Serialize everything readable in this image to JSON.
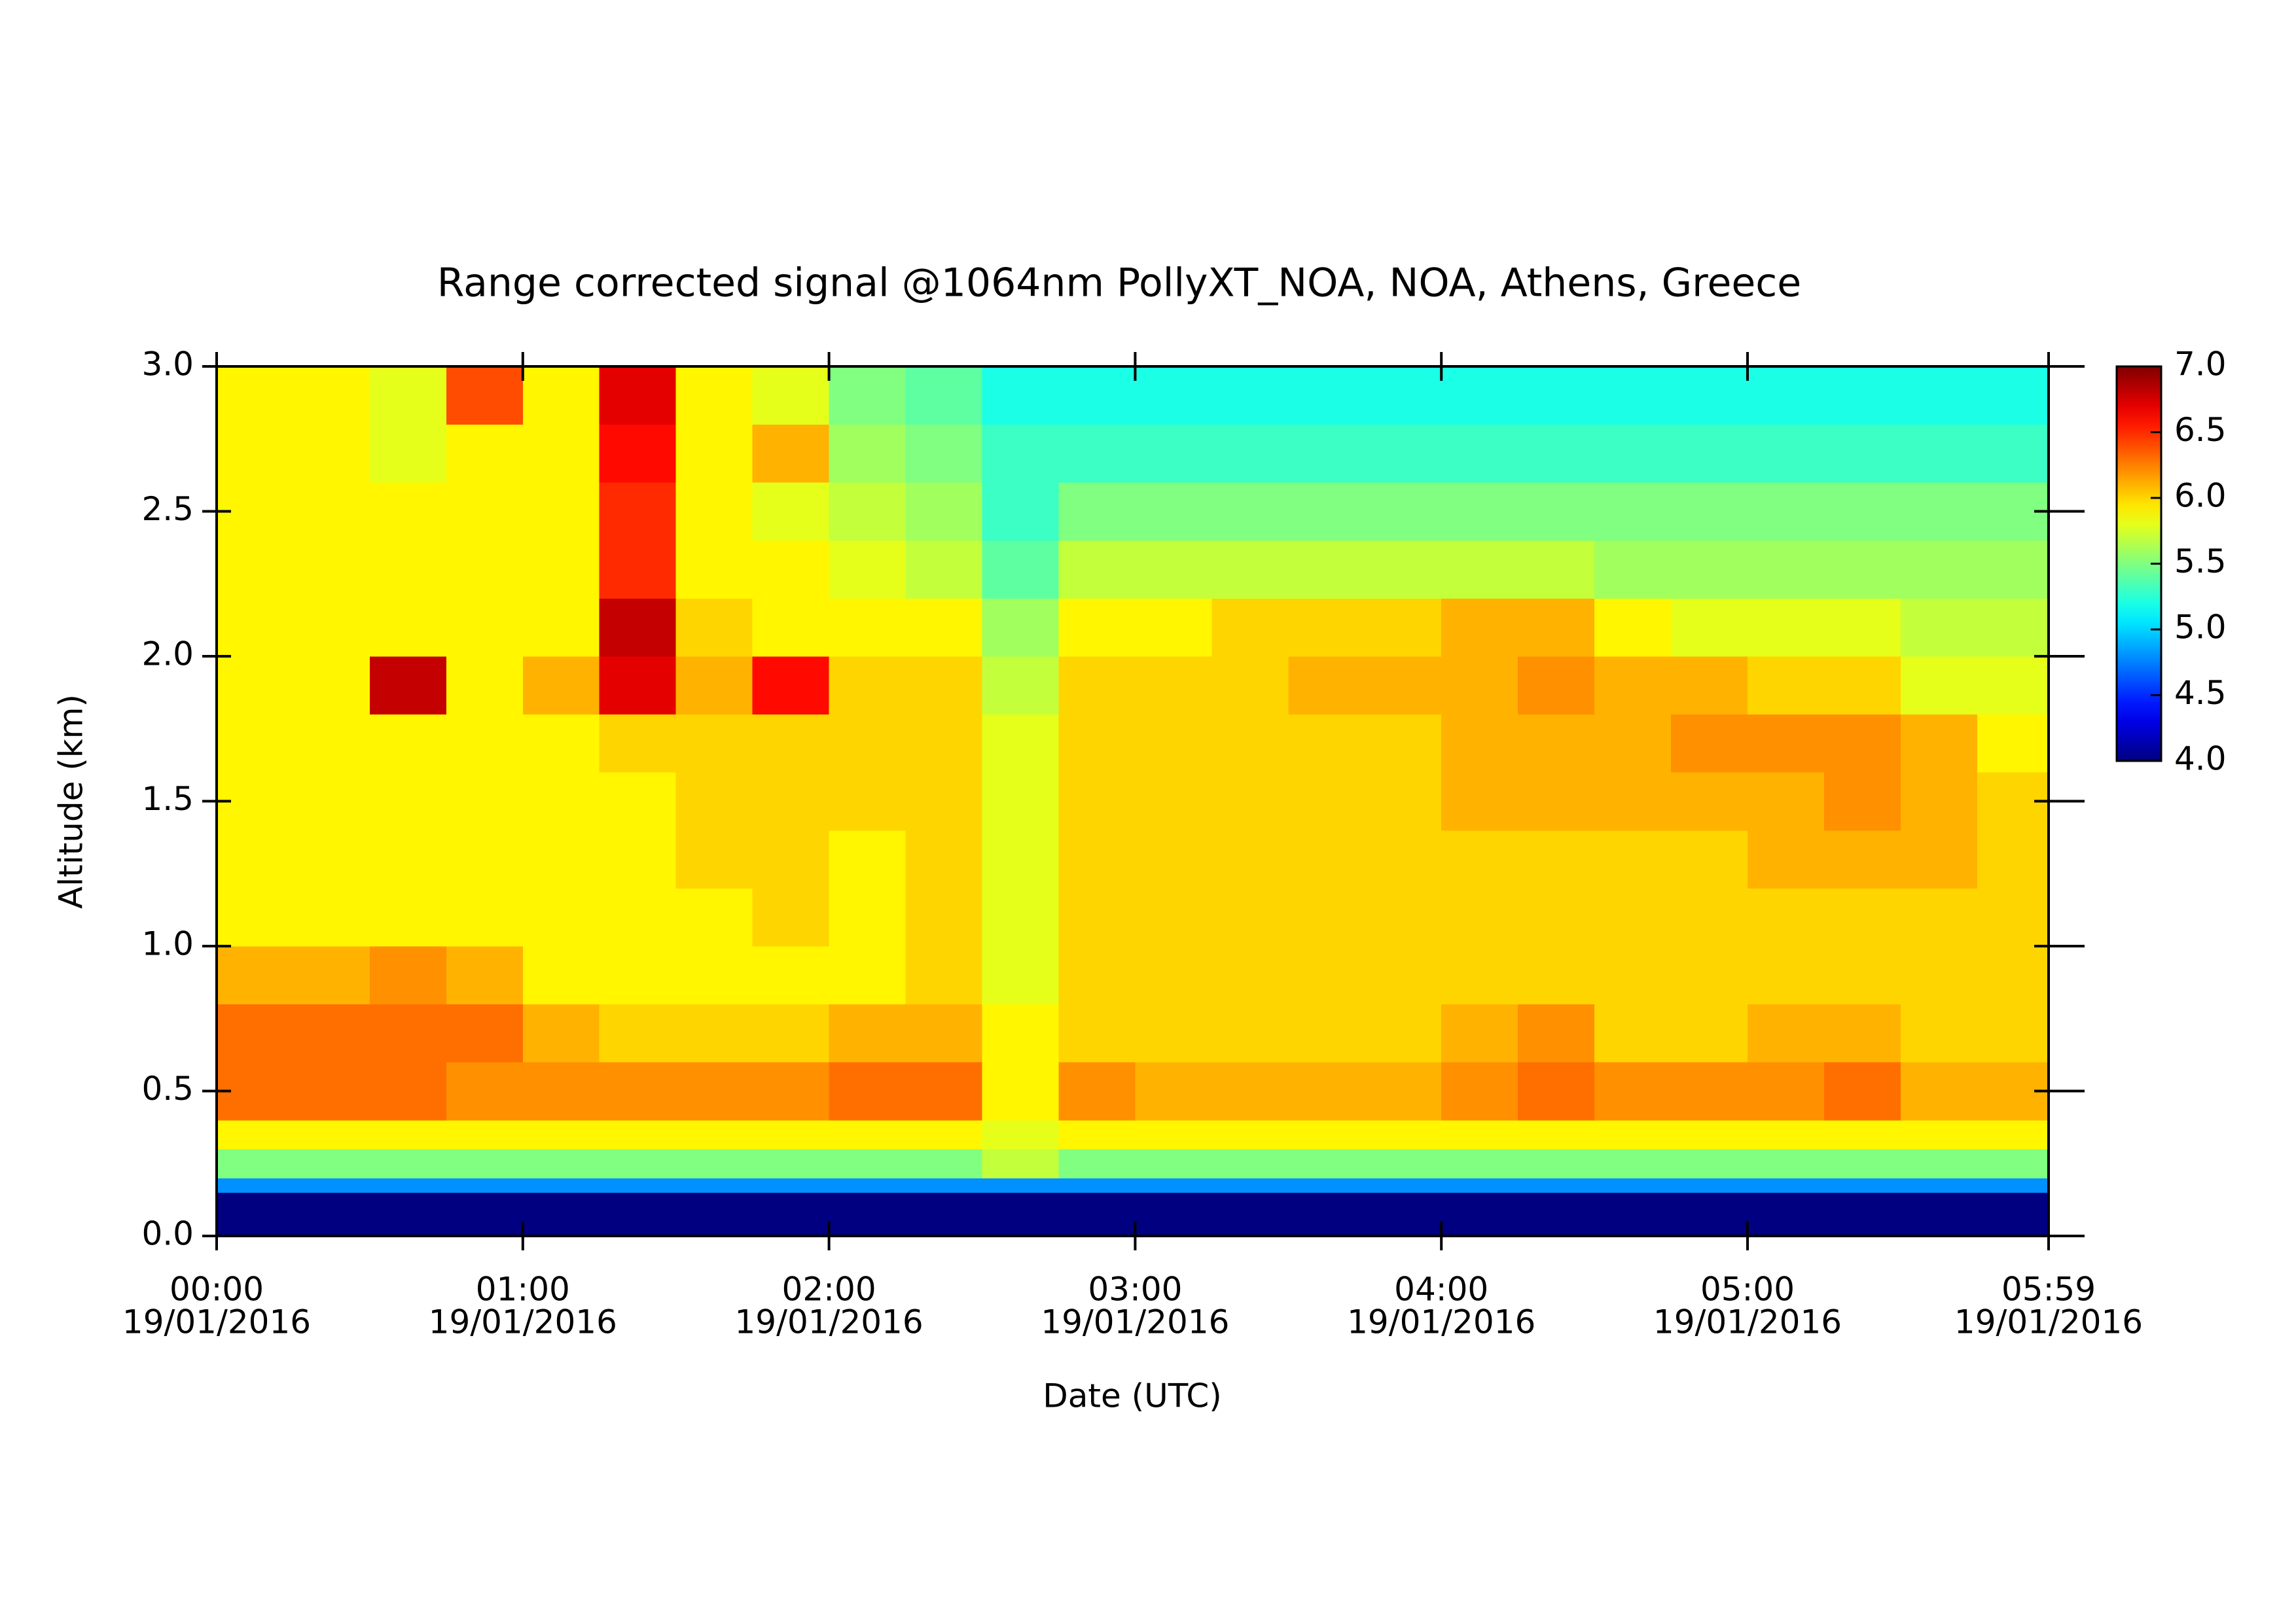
{
  "chart_data": {
    "type": "heatmap",
    "title": "Range corrected signal @1064nm  PollyXT_NOA, NOA, Athens, Greece",
    "xlabel": "Date (UTC)",
    "ylabel": "Altitude (km)",
    "colormap": "jet",
    "xlim": [
      0,
      359
    ],
    "ylim": [
      0,
      3
    ],
    "zlim": [
      4,
      7
    ],
    "xticks": [
      {
        "value": 0,
        "label": "00:00",
        "date": "19/01/2016"
      },
      {
        "value": 60,
        "label": "01:00",
        "date": "19/01/2016"
      },
      {
        "value": 120,
        "label": "02:00",
        "date": "19/01/2016"
      },
      {
        "value": 180,
        "label": "03:00",
        "date": "19/01/2016"
      },
      {
        "value": 240,
        "label": "04:00",
        "date": "19/01/2016"
      },
      {
        "value": 300,
        "label": "05:00",
        "date": "19/01/2016"
      },
      {
        "value": 359,
        "label": "05:59",
        "date": "19/01/2016"
      }
    ],
    "yticks": [
      {
        "value": 0,
        "label": "0.0"
      },
      0.5,
      {
        "value": 1,
        "label": "1.0"
      },
      1.5,
      {
        "value": 2,
        "label": "2.0"
      },
      2.5,
      {
        "value": 3,
        "label": "3.0"
      }
    ],
    "zticks": [
      {
        "value": 4,
        "label": "4.0"
      },
      4.5,
      {
        "value": 5,
        "label": "5.0"
      },
      5.5,
      {
        "value": 6,
        "label": "6.0"
      },
      6.5,
      {
        "value": 7,
        "label": "7.0"
      }
    ],
    "xbins": [
      0,
      15,
      30,
      45,
      60,
      75,
      90,
      105,
      120,
      135,
      150,
      165,
      180,
      195,
      210,
      225,
      240,
      255,
      270,
      285,
      300,
      315,
      330,
      345,
      359
    ],
    "ybins": [
      0,
      0.15,
      0.2,
      0.3,
      0.4,
      0.6,
      0.8,
      1.0,
      1.2,
      1.4,
      1.6,
      1.8,
      2.0,
      2.2,
      2.4,
      2.6,
      2.8,
      3.0
    ],
    "z": [
      [
        4.0,
        4.0,
        4.0,
        4.0,
        4.0,
        4.0,
        4.0,
        4.0,
        4.0,
        4.0,
        4.0,
        4.0,
        4.0,
        4.0,
        4.0,
        4.0,
        4.0,
        4.0,
        4.0,
        4.0,
        4.0,
        4.0,
        4.0,
        4.0
      ],
      [
        4.8,
        4.8,
        4.8,
        4.8,
        4.8,
        4.8,
        4.8,
        4.8,
        4.8,
        4.8,
        4.8,
        4.8,
        4.8,
        4.8,
        4.8,
        4.8,
        4.8,
        4.8,
        4.8,
        4.8,
        4.8,
        4.8,
        4.8,
        4.8
      ],
      [
        5.5,
        5.5,
        5.5,
        5.5,
        5.5,
        5.5,
        5.5,
        5.5,
        5.5,
        5.5,
        5.7,
        5.5,
        5.5,
        5.5,
        5.5,
        5.5,
        5.5,
        5.5,
        5.5,
        5.5,
        5.5,
        5.5,
        5.5,
        5.5
      ],
      [
        5.9,
        5.9,
        5.9,
        5.9,
        5.9,
        5.9,
        5.9,
        5.9,
        5.9,
        5.9,
        5.8,
        5.9,
        5.9,
        5.9,
        5.9,
        5.9,
        5.9,
        5.9,
        5.9,
        5.9,
        5.9,
        5.9,
        5.9,
        5.9
      ],
      [
        6.3,
        6.3,
        6.3,
        6.2,
        6.2,
        6.2,
        6.2,
        6.2,
        6.3,
        6.3,
        5.9,
        6.2,
        6.1,
        6.1,
        6.1,
        6.1,
        6.2,
        6.3,
        6.2,
        6.2,
        6.2,
        6.3,
        6.1,
        6.1
      ],
      [
        6.3,
        6.3,
        6.3,
        6.3,
        6.1,
        6.0,
        6.0,
        6.0,
        6.1,
        6.1,
        5.9,
        6.0,
        6.0,
        6.0,
        6.0,
        6.0,
        6.1,
        6.2,
        6.0,
        6.0,
        6.1,
        6.1,
        6.0,
        6.0
      ],
      [
        6.1,
        6.1,
        6.2,
        6.1,
        5.9,
        5.9,
        5.9,
        5.9,
        5.9,
        6.0,
        5.8,
        6.0,
        6.0,
        6.0,
        6.0,
        6.0,
        6.0,
        6.0,
        6.0,
        6.0,
        6.0,
        6.0,
        6.0,
        6.0
      ],
      [
        5.9,
        5.9,
        5.9,
        5.9,
        5.9,
        5.9,
        5.9,
        6.0,
        5.9,
        6.0,
        5.8,
        6.0,
        6.0,
        6.0,
        6.0,
        6.0,
        6.0,
        6.0,
        6.0,
        6.0,
        6.0,
        6.0,
        6.0,
        6.0
      ],
      [
        5.9,
        5.9,
        5.9,
        5.9,
        5.9,
        5.9,
        6.0,
        6.0,
        5.9,
        6.0,
        5.8,
        6.0,
        6.0,
        6.0,
        6.0,
        6.0,
        6.0,
        6.0,
        6.0,
        6.0,
        6.1,
        6.1,
        6.1,
        6.0
      ],
      [
        5.9,
        5.9,
        5.9,
        5.9,
        5.9,
        5.9,
        6.0,
        6.0,
        6.0,
        6.0,
        5.8,
        6.0,
        6.0,
        6.0,
        6.0,
        6.0,
        6.1,
        6.1,
        6.1,
        6.1,
        6.1,
        6.2,
        6.1,
        6.0
      ],
      [
        5.9,
        5.9,
        5.9,
        5.9,
        5.9,
        6.0,
        6.0,
        6.0,
        6.0,
        6.0,
        5.8,
        6.0,
        6.0,
        6.0,
        6.0,
        6.0,
        6.1,
        6.1,
        6.1,
        6.2,
        6.2,
        6.2,
        6.1,
        5.9
      ],
      [
        5.9,
        5.9,
        6.8,
        5.9,
        6.1,
        6.7,
        6.1,
        6.6,
        6.0,
        6.0,
        5.7,
        6.0,
        6.0,
        6.0,
        6.1,
        6.1,
        6.1,
        6.2,
        6.1,
        6.1,
        6.0,
        6.0,
        5.8,
        5.8
      ],
      [
        5.9,
        5.9,
        5.9,
        5.9,
        5.9,
        6.8,
        6.0,
        5.9,
        5.9,
        5.9,
        5.6,
        5.9,
        5.9,
        6.0,
        6.0,
        6.0,
        6.1,
        6.1,
        5.9,
        5.8,
        5.8,
        5.8,
        5.7,
        5.7
      ],
      [
        5.9,
        5.9,
        5.9,
        5.9,
        5.9,
        6.5,
        5.9,
        5.9,
        5.8,
        5.7,
        5.4,
        5.7,
        5.7,
        5.7,
        5.7,
        5.7,
        5.7,
        5.7,
        5.6,
        5.6,
        5.6,
        5.6,
        5.6,
        5.6
      ],
      [
        5.9,
        5.9,
        5.9,
        5.9,
        5.9,
        6.5,
        5.9,
        5.8,
        5.7,
        5.6,
        5.3,
        5.5,
        5.5,
        5.5,
        5.5,
        5.5,
        5.5,
        5.5,
        5.5,
        5.5,
        5.5,
        5.5,
        5.5,
        5.5
      ],
      [
        5.9,
        5.9,
        5.8,
        5.9,
        5.9,
        6.6,
        5.9,
        6.1,
        5.6,
        5.5,
        5.3,
        5.3,
        5.3,
        5.3,
        5.3,
        5.3,
        5.3,
        5.3,
        5.3,
        5.3,
        5.3,
        5.3,
        5.3,
        5.3
      ],
      [
        5.9,
        5.9,
        5.8,
        6.4,
        5.9,
        6.7,
        5.9,
        5.8,
        5.5,
        5.4,
        5.2,
        5.2,
        5.2,
        5.2,
        5.2,
        5.2,
        5.2,
        5.2,
        5.2,
        5.2,
        5.2,
        5.2,
        5.2,
        5.2
      ]
    ]
  }
}
